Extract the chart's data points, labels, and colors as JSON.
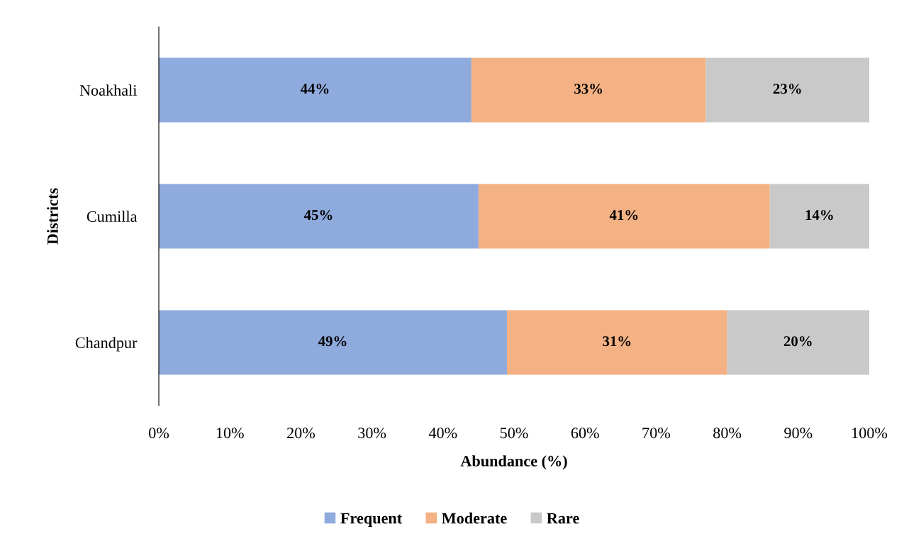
{
  "chart_data": {
    "type": "bar",
    "orientation": "horizontal",
    "stacked": true,
    "categories": [
      "Noakhali",
      "Cumilla",
      "Chandpur"
    ],
    "series": [
      {
        "name": "Frequent",
        "color": "#8faadc",
        "values": [
          44,
          45,
          49
        ],
        "value_labels": [
          "44%",
          "45%",
          "49%"
        ]
      },
      {
        "name": "Moderate",
        "color": "#f4b183",
        "values": [
          33,
          41,
          31
        ],
        "value_labels": [
          "33%",
          "41%",
          "31%"
        ]
      },
      {
        "name": "Rare",
        "color": "#c9c9c9",
        "values": [
          23,
          14,
          20
        ],
        "value_labels": [
          "23%",
          "14%",
          "20%"
        ]
      }
    ],
    "xlim": [
      0,
      100
    ],
    "xticks": [
      {
        "value": 0,
        "label": "0%"
      },
      {
        "value": 10,
        "label": "10%"
      },
      {
        "value": 20,
        "label": "20%"
      },
      {
        "value": 30,
        "label": "30%"
      },
      {
        "value": 40,
        "label": "40%"
      },
      {
        "value": 50,
        "label": "50%"
      },
      {
        "value": 60,
        "label": "60%"
      },
      {
        "value": 70,
        "label": "70%"
      },
      {
        "value": 80,
        "label": "80%"
      },
      {
        "value": 90,
        "label": "90%"
      },
      {
        "value": 100,
        "label": "100%"
      }
    ],
    "xlabel": "Abundance (%)",
    "ylabel": "Districts",
    "grid": false,
    "legend": "bottom"
  }
}
